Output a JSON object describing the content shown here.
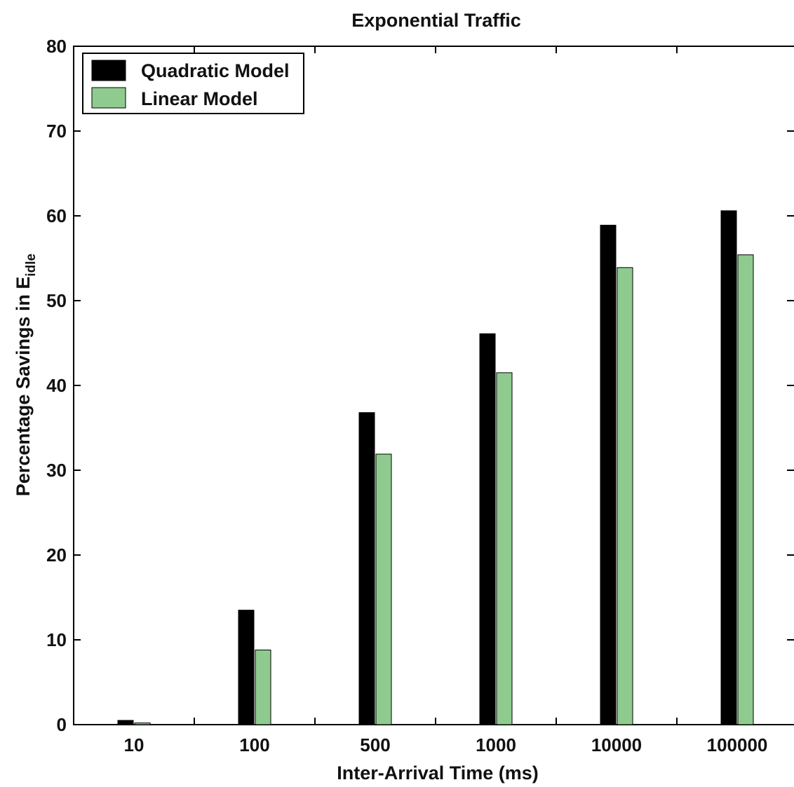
{
  "chart_data": {
    "type": "bar",
    "title": "Exponential Traffic",
    "xlabel": "Inter-Arrival Time (ms)",
    "ylabel_main": "Percentage Savings in E",
    "ylabel_sub": "idle",
    "categories": [
      "10",
      "100",
      "500",
      "1000",
      "10000",
      "100000"
    ],
    "series": [
      {
        "name": "Quadratic Model",
        "color": "#000000",
        "values": [
          0.5,
          13.5,
          36.8,
          46.1,
          58.9,
          60.6
        ]
      },
      {
        "name": "Linear Model",
        "color": "#8fcb8f",
        "values": [
          0.2,
          8.8,
          31.9,
          41.5,
          53.9,
          55.4
        ]
      }
    ],
    "ylim": [
      0,
      80
    ],
    "yticks": [
      0,
      10,
      20,
      30,
      40,
      50,
      60,
      70,
      80
    ],
    "grid": false,
    "legend_position": "top-left"
  }
}
